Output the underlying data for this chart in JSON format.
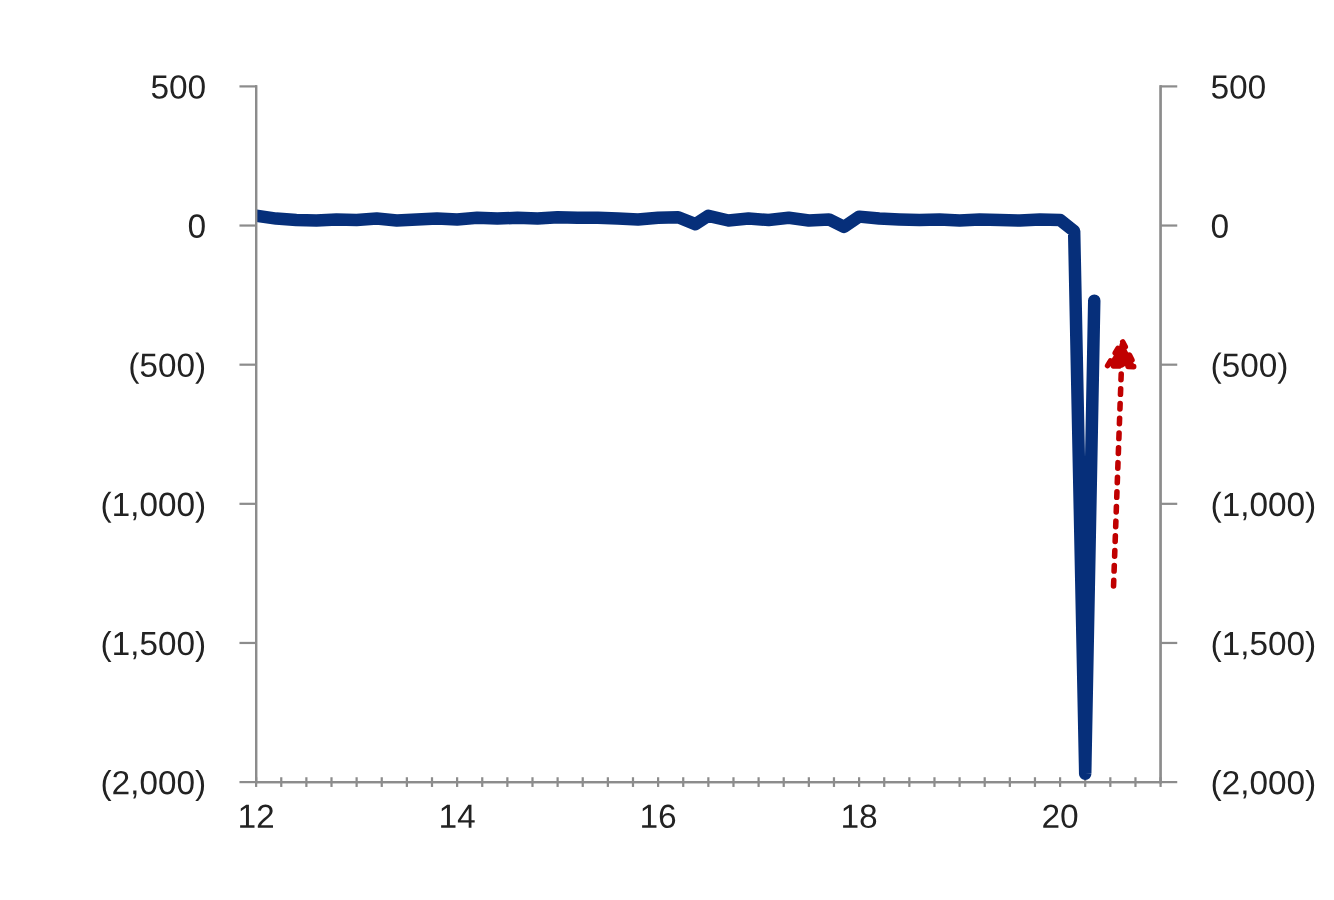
{
  "chart_data": {
    "type": "line",
    "x": [
      12.0,
      12.2,
      12.4,
      12.6,
      12.8,
      13.0,
      13.2,
      13.4,
      13.6,
      13.8,
      14.0,
      14.2,
      14.4,
      14.6,
      14.8,
      15.0,
      15.2,
      15.4,
      15.6,
      15.8,
      16.0,
      16.2,
      16.37,
      16.5,
      16.7,
      16.9,
      17.1,
      17.3,
      17.5,
      17.7,
      17.85,
      18.0,
      18.2,
      18.4,
      18.6,
      18.8,
      19.0,
      19.2,
      19.4,
      19.6,
      19.8,
      20.0,
      20.14,
      20.25,
      20.34
    ],
    "series": [
      {
        "color": "#062f7a",
        "values": [
          35,
          25,
          20,
          18,
          22,
          20,
          25,
          18,
          22,
          25,
          22,
          28,
          25,
          28,
          25,
          30,
          28,
          28,
          25,
          22,
          28,
          30,
          5,
          35,
          18,
          25,
          20,
          28,
          18,
          22,
          -5,
          32,
          25,
          22,
          20,
          22,
          18,
          22,
          20,
          18,
          22,
          20,
          -20,
          -1970,
          -270
        ]
      }
    ],
    "xlim": [
      12,
      21
    ],
    "xticks": [
      12,
      {
        "value": 12.25,
        "label": null
      },
      {
        "value": 12.5,
        "label": null
      },
      {
        "value": 12.75,
        "label": null
      },
      {
        "value": 13,
        "label": null
      },
      {
        "value": 13.25,
        "label": null
      },
      {
        "value": 13.5,
        "label": null
      },
      {
        "value": 13.75,
        "label": null
      },
      14,
      {
        "value": 14.25,
        "label": null
      },
      {
        "value": 14.5,
        "label": null
      },
      {
        "value": 14.75,
        "label": null
      },
      {
        "value": 15,
        "label": null
      },
      {
        "value": 15.25,
        "label": null
      },
      {
        "value": 15.5,
        "label": null
      },
      {
        "value": 15.75,
        "label": null
      },
      16,
      {
        "value": 16.25,
        "label": null
      },
      {
        "value": 16.5,
        "label": null
      },
      {
        "value": 16.75,
        "label": null
      },
      {
        "value": 17,
        "label": null
      },
      {
        "value": 17.25,
        "label": null
      },
      {
        "value": 17.5,
        "label": null
      },
      {
        "value": 17.75,
        "label": null
      },
      18,
      {
        "value": 18.25,
        "label": null
      },
      {
        "value": 18.5,
        "label": null
      },
      {
        "value": 18.75,
        "label": null
      },
      {
        "value": 19,
        "label": null
      },
      {
        "value": 19.25,
        "label": null
      },
      {
        "value": 19.5,
        "label": null
      },
      {
        "value": 19.75,
        "label": null
      },
      20,
      {
        "value": 20.25,
        "label": null
      },
      {
        "value": 20.5,
        "label": null
      },
      {
        "value": 20.75,
        "label": null
      },
      {
        "value": 21,
        "label": null
      }
    ],
    "ylim": [
      -2000,
      500
    ],
    "yticks": [
      500,
      0,
      {
        "value": -500,
        "label": "(500)"
      },
      {
        "value": -1000,
        "label": "(1,000)"
      },
      {
        "value": -1500,
        "label": "(1,500)"
      },
      {
        "value": -2000,
        "label": "(2,000)"
      }
    ],
    "y2lim": [
      -2000,
      500
    ],
    "y2ticks": [
      500,
      0,
      {
        "value": -500,
        "label": "(500)"
      },
      {
        "value": -1000,
        "label": "(1,000)"
      },
      {
        "value": -1500,
        "label": "(1,500)"
      },
      {
        "value": -2000,
        "label": "(2,000)"
      }
    ],
    "grid": false,
    "legend": false
  }
}
